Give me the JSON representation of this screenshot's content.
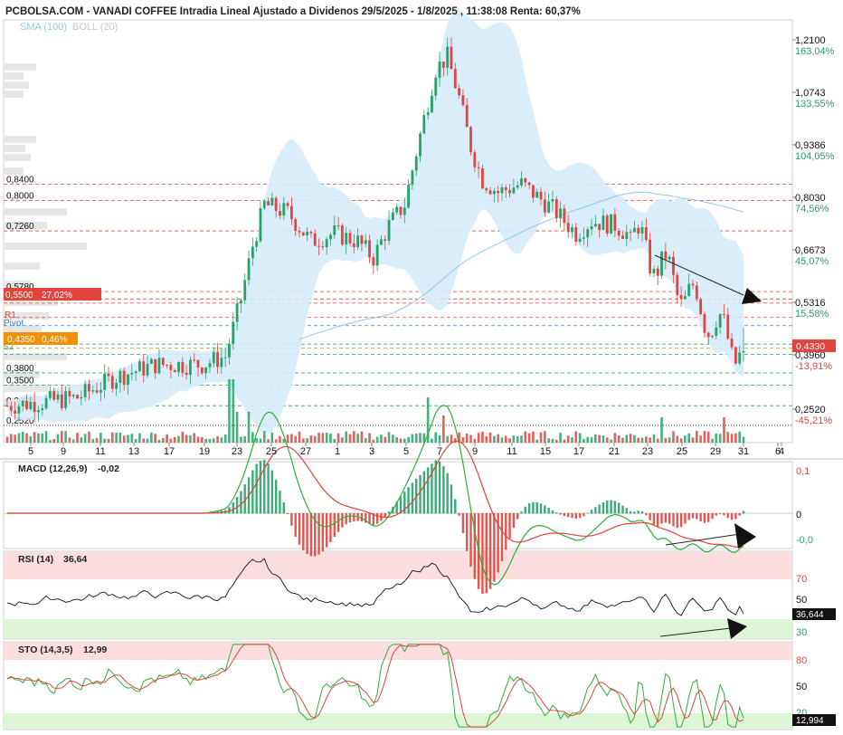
{
  "header": {
    "title": "PCBOLSA.COM - VANADI COFFEE Intradia Lineal Ajustado a Dividenos 29/5/2025 - 1/8/2025 , 11:38:08 Renta: 60,37%",
    "legend_sma": "SMA (100)",
    "legend_boll": "BOLL (20)"
  },
  "colors": {
    "up": "#26a269",
    "down": "#e0443c",
    "boll_fill": "#d6ebfb",
    "sma": "#8ec9ef",
    "macd_line": "#2fae3a",
    "signal_line": "#e0443c",
    "rsi_line": "#111111",
    "overbought_zone": "#fbdedd",
    "oversold_zone": "#dcf6d6"
  },
  "chart_data": [
    {
      "type": "candlestick",
      "name": "price",
      "ylim": [
        0.21,
        1.24
      ],
      "x_ticks": [
        "5",
        "9",
        "11",
        "13",
        "17",
        "19",
        "23",
        "25",
        "27",
        "1",
        "3",
        "5",
        "7",
        "9",
        "11",
        "15",
        "17",
        "21",
        "23",
        "25",
        "29",
        "31",
        "4",
        "6"
      ],
      "right_axis": [
        {
          "value": "1,2100",
          "pct": "163,04%"
        },
        {
          "value": "1,0743",
          "pct": "133,55%"
        },
        {
          "value": "0,9386",
          "pct": "104,05%"
        },
        {
          "value": "0,8030",
          "pct": "74,56%"
        },
        {
          "value": "0,6673",
          "pct": "45,07%"
        },
        {
          "value": "0,5316",
          "pct": "15,58%"
        },
        {
          "value": "0,3960",
          "pct": "-13,91%"
        },
        {
          "value": "0,2520",
          "pct": "-45,21%"
        }
      ],
      "last_price": "0,4330",
      "left_levels": [
        {
          "label": "0,8400",
          "value": 0.84,
          "color": "#e0443c",
          "style": "dash"
        },
        {
          "label": "0,8000",
          "value": 0.8,
          "color": "#e0443c",
          "style": "dash"
        },
        {
          "label": "0,7260",
          "value": 0.726,
          "color": "#e0443c",
          "style": "dash"
        },
        {
          "label": "0,5780",
          "value": 0.578,
          "color": "#e0443c",
          "style": "dash"
        },
        {
          "label": "0,3800",
          "value": 0.38,
          "color": "#26a269",
          "style": "dash"
        },
        {
          "label": "0,3500",
          "value": 0.35,
          "color": "#26a269",
          "style": "dash"
        },
        {
          "label": "0,3000",
          "value": 0.3,
          "color": "#26a269",
          "style": "dash"
        },
        {
          "label": "0,2520",
          "value": 0.252,
          "color": "#111111",
          "style": "dot"
        }
      ],
      "pivot_labels": {
        "r1": "R1",
        "pivot": "Pivot",
        "s1": "S1",
        "s2": "S2"
      },
      "badge_high": {
        "price": "0,5500",
        "pct": "27,02%"
      },
      "badge_low": {
        "price": "0,4350",
        "pct": "0,46%"
      },
      "volume_profile": true
    },
    {
      "type": "line",
      "name": "macd",
      "title": "MACD (12,26,9)",
      "value": "-0,02",
      "y_ticks": [
        "0,1",
        "0",
        "-0,0"
      ]
    },
    {
      "type": "line",
      "name": "rsi",
      "title": "RSI (14)",
      "value": "36,64",
      "y_ticks": [
        "70",
        "50",
        "30"
      ],
      "last_value": "36,644"
    },
    {
      "type": "line",
      "name": "sto",
      "title": "STO (14,3,5)",
      "value": "12,99",
      "y_ticks": [
        "80",
        "50",
        "20"
      ],
      "last_value": "12,994"
    }
  ]
}
